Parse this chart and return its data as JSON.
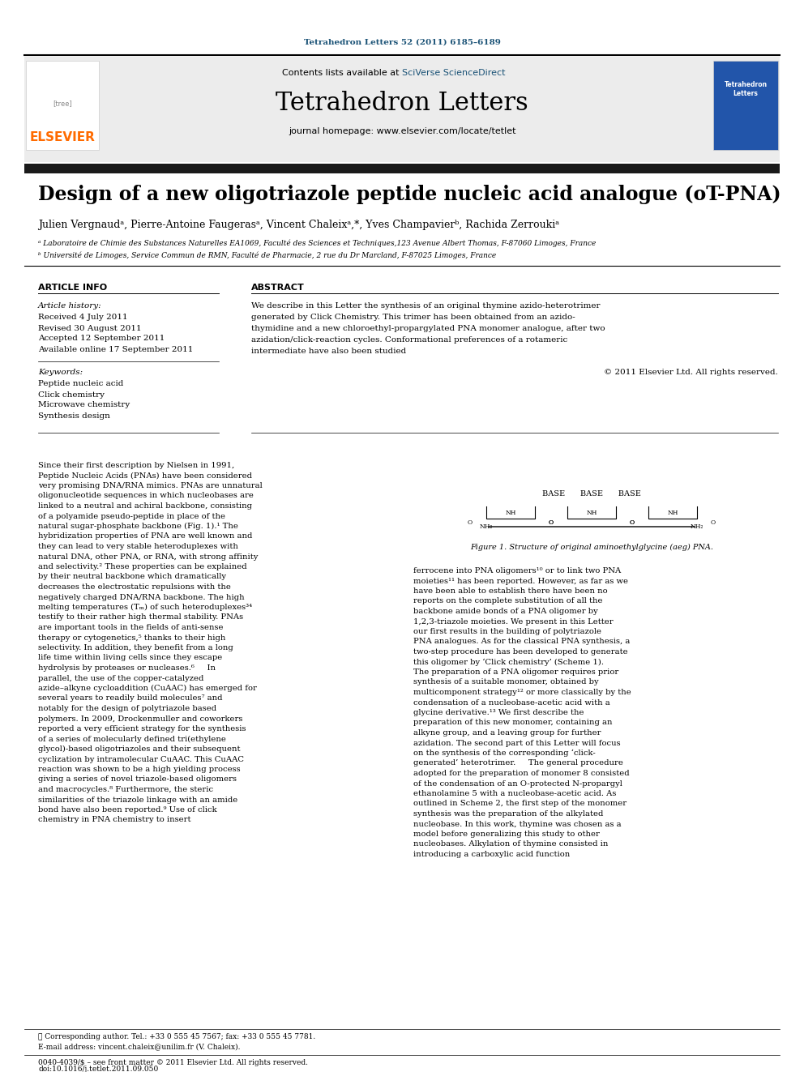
{
  "page_title": "Tetrahedron Letters 52 (2011) 6185–6189",
  "journal_name": "Tetrahedron Letters",
  "journal_homepage": "journal homepage: www.elsevier.com/locate/tetlet",
  "contents_line": "Contents lists available at SciVerse ScienceDirect",
  "article_title": "Design of a new oligotriazole peptide nucleic acid analogue (oT-PNA)",
  "authors": "Julien Vergnaudᵃ, Pierre-Antoine Faugerasᵃ, Vincent Chaleixᵃʳ*, Yves Champavierᵇ, Rachida Zerroukiᵃ",
  "affil_a": "ᵃ Laboratoire de Chimie des Substances Naturelles EA1069, Faculté des Sciences et Techniques,123 Avenue Albert Thomas, F-87060 Limoges, France",
  "affil_b": "ᵇ Université de Limoges, Service Commun de RMN, Faculté de Pharmacie, 2 rue du Dr Marcland, F-87025 Limoges, France",
  "section_article_info": "ARTICLE INFO",
  "section_abstract": "ABSTRACT",
  "article_history_label": "Article history:",
  "received": "Received 4 July 2011",
  "revised": "Revised 30 August 2011",
  "accepted": "Accepted 12 September 2011",
  "available": "Available online 17 September 2011",
  "keywords_label": "Keywords:",
  "keywords": [
    "Peptide nucleic acid",
    "Click chemistry",
    "Microwave chemistry",
    "Synthesis design"
  ],
  "abstract_text": "We describe in this Letter the synthesis of an original thymine azido-heterotrimer generated by Click Chemistry. This trimer has been obtained from an azido-thymidine and a new chloroethyl-propargylated PNA monomer analogue, after two azidation/click-reaction cycles. Conformational preferences of a rotameric intermediate have also been studied",
  "copyright": "© 2011 Elsevier Ltd. All rights reserved.",
  "body_col1": "Since their first description by Nielsen in 1991, Peptide Nucleic Acids (PNAs) have been considered very promising DNA/RNA mimics. PNAs are unnatural oligonucleotide sequences in which nucleobases are linked to a neutral and achiral backbone, consisting of a polyamide pseudo-peptide in place of the natural sugar-phosphate backbone (Fig. 1).¹ The hybridization properties of PNA are well known and they can lead to very stable heteroduplexes with natural DNA, other PNA, or RNA, with strong affinity and selectivity.² These properties can be explained by their neutral backbone which dramatically decreases the electrostatic repulsions with the negatively charged DNA/RNA backbone. The high melting temperatures (Tₘ) of such heteroduplexes³⁴ testify to their rather high thermal stability. PNAs are important tools in the fields of anti-sense therapy or cytogenetics,⁵ thanks to their high selectivity. In addition, they benefit from a long life time within living cells since they escape hydrolysis by proteases or nucleases.⁶\n    In parallel, the use of the copper-catalyzed azide–alkyne cycloaddition (CuAAC) has emerged for several years to readily build molecules⁷ and notably for the design of polytriazole based polymers. In 2009, Drockenmuller and coworkers reported a very efficient strategy for the synthesis of a series of molecularly defined tri(ethylene glycol)-based oligotriazoles and their subsequent cyclization by intramolecular CuAAC. This CuAAC reaction was shown to be a high yielding process giving a series of novel triazole-based oligomers and macrocycles.⁸ Furthermore, the steric similarities of the triazole linkage with an amide bond have also been reported.⁹ Use of click chemistry in PNA chemistry to insert",
  "body_col2": "ferrocene into PNA oligomers¹⁰ or to link two PNA moieties¹¹ has been reported. However, as far as we have been able to establish there have been no reports on the complete substitution of all the backbone amide bonds of a PNA oligomer by 1,2,3-triazole moieties. We present in this Letter our first results in the building of polytriazole PNA analogues. As for the classical PNA synthesis, a two-step procedure has been developed to generate this oligomer by ‘Click chemistry’ (Scheme 1).\n    The preparation of a PNA oligomer requires prior synthesis of a suitable monomer, obtained by multicomponent strategy¹² or more classically by the condensation of a nucleobase-acetic acid with a glycine derivative.¹³ We first describe the preparation of this new monomer, containing an alkyne group, and a leaving group for further azidation. The second part of this Letter will focus on the synthesis of the corresponding ‘click-generated’ heterotrimer.\n    The general procedure adopted for the preparation of monomer 8 consisted of the condensation of an O-protected N-propargyl ethanolamine 5 with a nucleobase-acetic acid. As outlined in Scheme 2, the first step of the monomer synthesis was the preparation of the alkylated nucleobase. In this work, thymine was chosen as a model before generalizing this study to other nucleobases. Alkylation of thymine consisted in introducing a carboxylic acid function",
  "figure_caption": "Figure 1. Structure of original aminoethylglycine (aeg) PNA.",
  "footer_line1": "⋆ Corresponding author. Tel.: +33 0 555 45 7567; fax: +33 0 555 45 7781.",
  "footer_line2": "E-mail address: vincent.chaleix@unilim.fr (V. Chaleix).",
  "footer_bottom1": "0040-4039/$ – see front matter © 2011 Elsevier Ltd. All rights reserved.",
  "footer_bottom2": "doi:10.1016/j.tetlet.2011.09.050",
  "elsevier_color": "#FF6B00",
  "link_color": "#1a5276",
  "title_color": "#000000",
  "background_color": "#ffffff",
  "header_bg": "#f0f0f0",
  "dark_bar_color": "#1a1a2e"
}
